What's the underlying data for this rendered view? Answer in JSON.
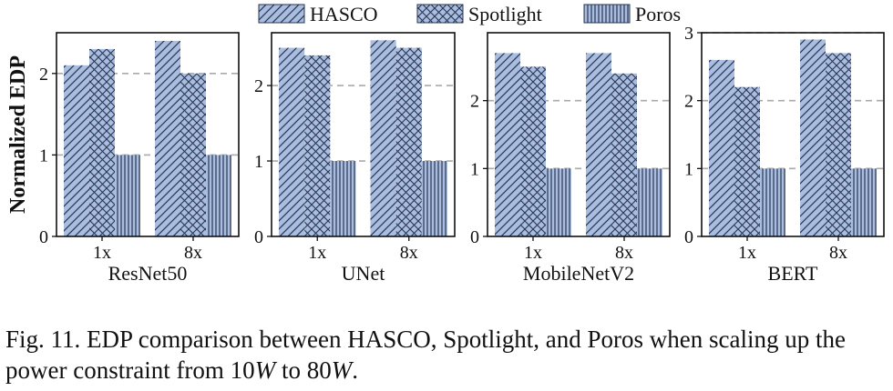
{
  "caption": {
    "part1": "Fig. 11.  EDP comparison between HASCO, Spotlight, and Poros when scaling up the power constraint from 10",
    "w1": "W",
    "part2": " to 80",
    "w2": "W",
    "part3": "."
  },
  "legend": [
    {
      "name": "HASCO",
      "pattern": "diagonal-hatch"
    },
    {
      "name": "Spotlight",
      "pattern": "cross-hatch"
    },
    {
      "name": "Poros",
      "pattern": "vertical-hatch"
    }
  ],
  "colors": {
    "bar_fill": "#a8bde0",
    "hatch": "#2a3550",
    "grid": "#aaaaaa"
  },
  "ylabel": "Normalized EDP",
  "chart_data": [
    {
      "type": "bar",
      "title": "ResNet50",
      "categories": [
        "1x",
        "8x"
      ],
      "ylim": [
        0,
        2.5
      ],
      "yticks": [
        0,
        1,
        2
      ],
      "grid": "dashed-horizontal",
      "series": [
        {
          "name": "HASCO",
          "values": [
            2.1,
            2.4
          ]
        },
        {
          "name": "Spotlight",
          "values": [
            2.3,
            2.0
          ]
        },
        {
          "name": "Poros",
          "values": [
            1.0,
            1.0
          ]
        }
      ]
    },
    {
      "type": "bar",
      "title": "UNet",
      "categories": [
        "1x",
        "8x"
      ],
      "ylim": [
        0,
        2.7
      ],
      "yticks": [
        0,
        1,
        2
      ],
      "grid": "dashed-horizontal",
      "series": [
        {
          "name": "HASCO",
          "values": [
            2.5,
            2.6
          ]
        },
        {
          "name": "Spotlight",
          "values": [
            2.4,
            2.5
          ]
        },
        {
          "name": "Poros",
          "values": [
            1.0,
            1.0
          ]
        }
      ]
    },
    {
      "type": "bar",
      "title": "MobileNetV2",
      "categories": [
        "1x",
        "8x"
      ],
      "ylim": [
        0,
        3.0
      ],
      "yticks": [
        0,
        1,
        2
      ],
      "grid": "dashed-horizontal",
      "series": [
        {
          "name": "HASCO",
          "values": [
            2.7,
            2.7
          ]
        },
        {
          "name": "Spotlight",
          "values": [
            2.5,
            2.4
          ]
        },
        {
          "name": "Poros",
          "values": [
            1.0,
            1.0
          ]
        }
      ]
    },
    {
      "type": "bar",
      "title": "BERT",
      "categories": [
        "1x",
        "8x"
      ],
      "ylim": [
        0,
        3.0
      ],
      "yticks": [
        0,
        1,
        2,
        3
      ],
      "grid": "dashed-horizontal",
      "series": [
        {
          "name": "HASCO",
          "values": [
            2.6,
            2.9
          ]
        },
        {
          "name": "Spotlight",
          "values": [
            2.2,
            2.7
          ]
        },
        {
          "name": "Poros",
          "values": [
            1.0,
            1.0
          ]
        }
      ]
    }
  ]
}
